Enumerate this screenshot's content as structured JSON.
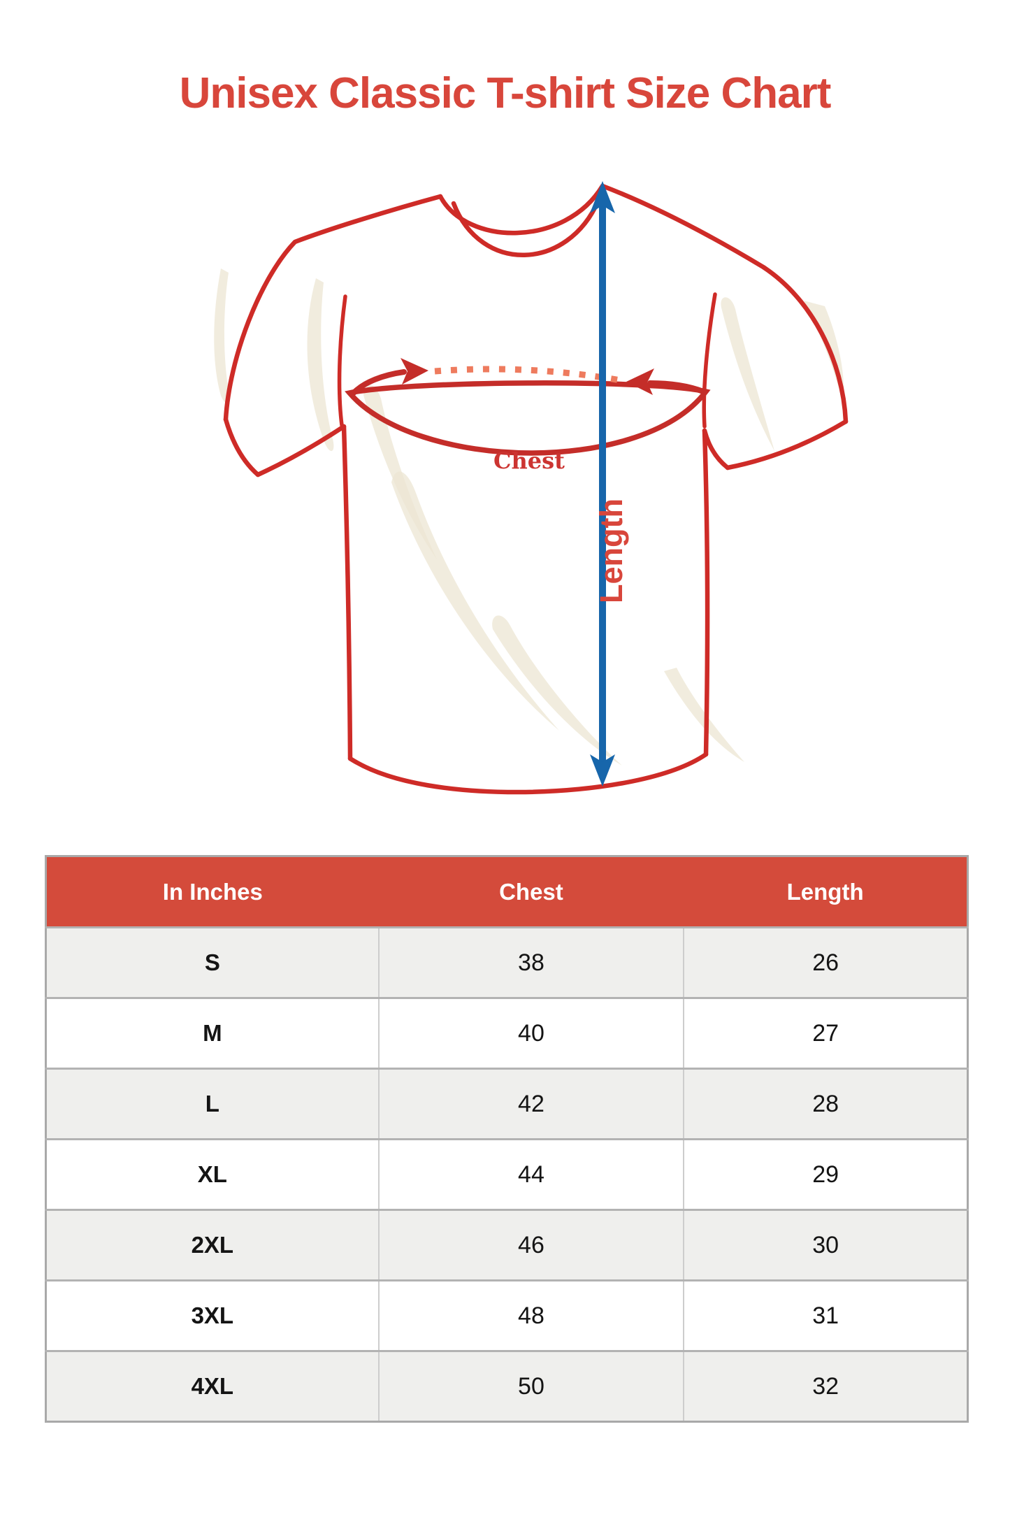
{
  "page": {
    "title": "Unisex Classic T-shirt Size Chart"
  },
  "colors": {
    "title-red": "#d8463b",
    "outline-red": "#ce2b27",
    "arrow-red": "#c42d29",
    "dotted-orange": "#ee7b5e",
    "measure-blue": "#1766ab",
    "label-red": "#d8463b",
    "chest-label-red": "#cc3431",
    "header-bg": "#d44b3b",
    "header-text": "#ffffff",
    "row-alt-bg": "#efefed",
    "row-bg": "#ffffff",
    "cell-text": "#141414",
    "border-outer": "#a9a9a9",
    "border-row": "#b3b3b3",
    "border-col": "#cdcdcd",
    "shading-cream": "#ece5d3"
  },
  "diagram": {
    "chest_label": "Chest",
    "length_label": "Length"
  },
  "table": {
    "headers": [
      "In Inches",
      "Chest",
      "Length"
    ],
    "rows": [
      {
        "size": "S",
        "chest": "38",
        "length": "26"
      },
      {
        "size": "M",
        "chest": "40",
        "length": "27"
      },
      {
        "size": "L",
        "chest": "42",
        "length": "28"
      },
      {
        "size": "XL",
        "chest": "44",
        "length": "29"
      },
      {
        "size": "2XL",
        "chest": "46",
        "length": "30"
      },
      {
        "size": "3XL",
        "chest": "48",
        "length": "31"
      },
      {
        "size": "4XL",
        "chest": "50",
        "length": "32"
      }
    ]
  }
}
